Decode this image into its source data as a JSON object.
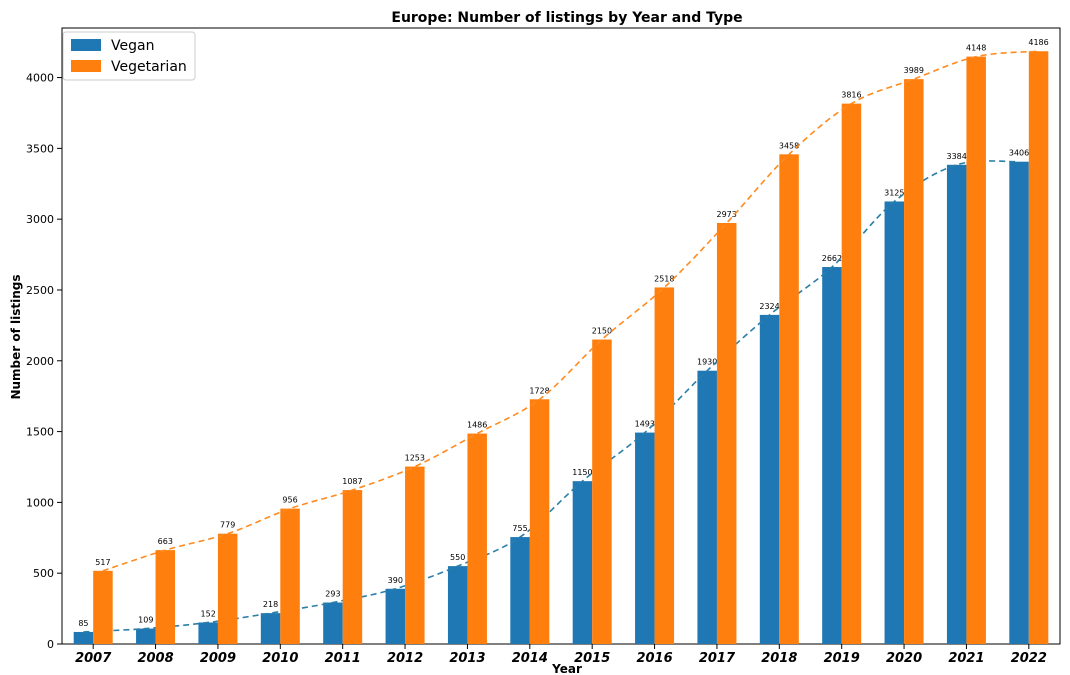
{
  "chart_data": {
    "type": "bar",
    "title": "Europe: Number of listings by Year and Type",
    "xlabel": "Year",
    "ylabel": "Number of listings",
    "categories": [
      "2007",
      "2008",
      "2009",
      "2010",
      "2011",
      "2012",
      "2013",
      "2014",
      "2015",
      "2016",
      "2017",
      "2018",
      "2019",
      "2020",
      "2021",
      "2022"
    ],
    "series": [
      {
        "name": "Vegan",
        "color": "#1f77b4",
        "values": [
          85,
          109,
          152,
          218,
          293,
          390,
          550,
          755,
          1150,
          1493,
          1930,
          2324,
          2662,
          3125,
          3384,
          3406
        ]
      },
      {
        "name": "Vegetarian",
        "color": "#ff7f0e",
        "values": [
          517,
          663,
          779,
          956,
          1087,
          1253,
          1486,
          1728,
          2150,
          2518,
          2973,
          3458,
          3816,
          3989,
          4148,
          4186
        ]
      }
    ],
    "ylim": [
      0,
      4350
    ],
    "yticks": [
      0,
      500,
      1000,
      1500,
      2000,
      2500,
      3000,
      3500,
      4000
    ],
    "trend_lines": "dashed",
    "legend_position": "top-left",
    "grid": false
  }
}
